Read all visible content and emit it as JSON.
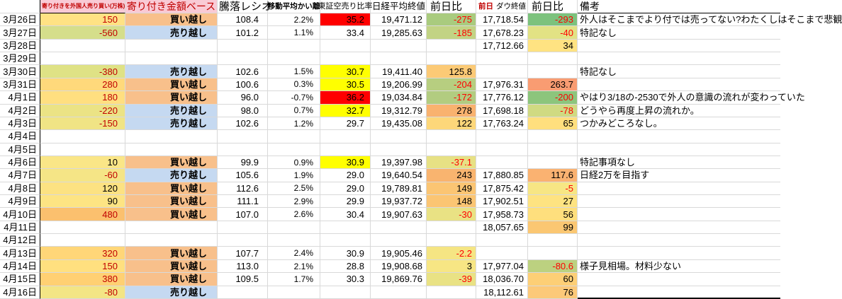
{
  "header": {
    "amount_label": "寄り付きを外国人売り買い(万株)",
    "basis_label": "寄り付き金額ベース",
    "ratio_label": "騰落レシオ",
    "ma_label": "移動平均かい離",
    "short_label": "東証空売り比率",
    "nikkei_label": "日経平均終値",
    "nikkei_chg_label": "前日比",
    "dow_prefix_label": "前日",
    "dow_label": "ダウ終値",
    "dow_chg_label": "前日比",
    "remark_label": "備考"
  },
  "colors": {
    "header_pink": "#F9CAD5",
    "header_red_text": "#C00000",
    "buy_bg": "#F8C08B",
    "sell_bg": "#C5D9F1",
    "amount_neg": "#C00000",
    "neg_text": "#FF0000",
    "short_red": "#FF0000",
    "short_yellow": "#FFFF00",
    "grid": "#D9D9D9"
  },
  "rows": [
    {
      "date": "3月26日",
      "amount": "150",
      "amount_bg": "#FFE284",
      "amount_red": true,
      "kind": "買い越し",
      "kind_bg": "#F8C08B",
      "ratio": "108.4",
      "ma": "2.2%",
      "short": "35.2",
      "short_bg": "#FF0000",
      "nikkei": "19,471.12",
      "nikkei_chg": "-275",
      "nikkei_chg_bg": "#A9CB7E",
      "nikkei_chg_red": true,
      "dow": "17,718.54",
      "dow_chg": "-293",
      "dow_chg_bg": "#7CC27D",
      "dow_chg_red": true,
      "remark": "外人はそこまでより付では売ってない?わたくしはそこまで悲観"
    },
    {
      "date": "3月27日",
      "amount": "-560",
      "amount_bg": "#D5DE8B",
      "amount_red": true,
      "kind": "売り越し",
      "kind_bg": "#C5D9F1",
      "ratio": "101.2",
      "ma": "1.1%",
      "short": "33.4",
      "short_bg": "",
      "nikkei": "19,285.63",
      "nikkei_chg": "-185",
      "nikkei_chg_bg": "#C2D384",
      "nikkei_chg_red": true,
      "dow": "17,678.23",
      "dow_chg": "-40",
      "dow_chg_bg": "#E2E284",
      "dow_chg_red": true,
      "remark": "特記なし"
    },
    {
      "date": "3月28日",
      "amount": "",
      "kind": "",
      "ratio": "",
      "ma": "",
      "short": "",
      "nikkei": "",
      "nikkei_chg": "",
      "dow": "17,712.66",
      "dow_chg": "34",
      "dow_chg_bg": "#FFE382",
      "remark": ""
    },
    {
      "date": "3月29日",
      "amount": "",
      "kind": "",
      "ratio": "",
      "ma": "",
      "short": "",
      "nikkei": "",
      "nikkei_chg": "",
      "dow": "",
      "dow_chg": "",
      "remark": ""
    },
    {
      "date": "3月30日",
      "amount": "-380",
      "amount_bg": "#DFE285",
      "amount_red": true,
      "kind": "売り越し",
      "kind_bg": "#C5D9F1",
      "ratio": "102.6",
      "ma": "1.5%",
      "short": "30.7",
      "short_bg": "#FFFF00",
      "nikkei": "19,411.40",
      "nikkei_chg": "125.8",
      "nikkei_chg_bg": "#FCCA76",
      "dow": "",
      "dow_chg": "",
      "remark": "特記なし"
    },
    {
      "date": "3月31日",
      "amount": "280",
      "amount_bg": "#FFD97B",
      "amount_red": true,
      "kind": "買い越し",
      "kind_bg": "#F8C08B",
      "ratio": "100.6",
      "ma": "0.3%",
      "short": "30.5",
      "short_bg": "#FFFF00",
      "nikkei": "19,206.99",
      "nikkei_chg": "-204",
      "nikkei_chg_bg": "#B7CE80",
      "nikkei_chg_red": true,
      "dow": "17,976.31",
      "dow_chg": "263.7",
      "dow_chg_bg": "#F99C72",
      "remark": ""
    },
    {
      "date": "4月1日",
      "amount": "180",
      "amount_bg": "#FFDF80",
      "amount_red": true,
      "kind": "買い越し",
      "kind_bg": "#F8C08B",
      "ratio": "96.0",
      "ma": "-0.7%",
      "short": "36.2",
      "short_bg": "#FF0000",
      "nikkei": "19,034.84",
      "nikkei_chg": "-172",
      "nikkei_chg_bg": "#B2CC80",
      "nikkei_chg_red": true,
      "dow": "17,776.12",
      "dow_chg": "-200",
      "dow_chg_bg": "#8CC57C",
      "dow_chg_red": true,
      "remark": "やはり3/18の-2530で外人の意識の流れが変わっていた"
    },
    {
      "date": "4月2日",
      "amount": "-220",
      "amount_bg": "#EBE385",
      "amount_red": true,
      "kind": "売り越し",
      "kind_bg": "#C5D9F1",
      "ratio": "98.0",
      "ma": "0.7%",
      "short": "32.7",
      "short_bg": "#FFFF00",
      "nikkei": "19,312.79",
      "nikkei_chg": "278",
      "nikkei_chg_bg": "#F9B26F",
      "dow": "17,698.18",
      "dow_chg": "-78",
      "dow_chg_bg": "#D0DA82",
      "dow_chg_red": true,
      "remark": "どうやら再度上昇の流れか。"
    },
    {
      "date": "4月3日",
      "amount": "-150",
      "amount_bg": "#F0E485",
      "amount_red": true,
      "kind": "売り越し",
      "kind_bg": "#C5D9F1",
      "ratio": "102.6",
      "ma": "1.2%",
      "short": "29.7",
      "short_bg": "",
      "nikkei": "19,435.08",
      "nikkei_chg": "122",
      "nikkei_chg_bg": "#FDD77A",
      "dow": "17,763.24",
      "dow_chg": "65",
      "dow_chg_bg": "#FFDF7E",
      "remark": "つかみどころなし。"
    },
    {
      "date": "4月4日",
      "amount": "",
      "kind": "",
      "ratio": "",
      "ma": "",
      "short": "",
      "nikkei": "",
      "nikkei_chg": "",
      "dow": "",
      "dow_chg": "",
      "remark": ""
    },
    {
      "date": "4月5日",
      "amount": "",
      "kind": "",
      "ratio": "",
      "ma": "",
      "short": "",
      "nikkei": "",
      "nikkei_chg": "",
      "dow": "",
      "dow_chg": "",
      "remark": ""
    },
    {
      "date": "4月6日",
      "amount": "10",
      "amount_bg": "#FAE687",
      "kind": "買い越し",
      "kind_bg": "#F8C08B",
      "ratio": "99.9",
      "ma": "0.9%",
      "short": "30.9",
      "short_bg": "#FFFF00",
      "nikkei": "19,397.98",
      "nikkei_chg": "-37.1",
      "nikkei_chg_bg": "#E7E184",
      "nikkei_chg_red": true,
      "dow": "",
      "dow_chg": "",
      "remark": "特記事項なし"
    },
    {
      "date": "4月7日",
      "amount": "-60",
      "amount_bg": "#F5E586",
      "amount_red": true,
      "kind": "売り越し",
      "kind_bg": "#C5D9F1",
      "ratio": "105.6",
      "ma": "1.9%",
      "short": "29.0",
      "short_bg": "",
      "nikkei": "19,640.54",
      "nikkei_chg": "243",
      "nikkei_chg_bg": "#F9B46F",
      "dow": "17,880.85",
      "dow_chg": "117.6",
      "dow_chg_bg": "#FAB271",
      "remark": "日経2万を目指す"
    },
    {
      "date": "4月8日",
      "amount": "120",
      "amount_bg": "#FCE282",
      "kind": "買い越し",
      "kind_bg": "#F8C08B",
      "ratio": "112.6",
      "ma": "2.5%",
      "short": "29.0",
      "short_bg": "",
      "nikkei": "19,789.81",
      "nikkei_chg": "149",
      "nikkei_chg_bg": "#FBC573",
      "dow": "17,875.42",
      "dow_chg": "-5",
      "dow_chg_bg": "#F7E684",
      "dow_chg_red": true,
      "remark": ""
    },
    {
      "date": "4月9日",
      "amount": "90",
      "amount_bg": "#FDE483",
      "kind": "買い越し",
      "kind_bg": "#F8C08B",
      "ratio": "111.1",
      "ma": "2.9%",
      "short": "29.9",
      "short_bg": "",
      "nikkei": "19,937.72",
      "nikkei_chg": "148",
      "nikkei_chg_bg": "#FBC573",
      "dow": "17,902.51",
      "dow_chg": "27",
      "dow_chg_bg": "#FEE381",
      "remark": ""
    },
    {
      "date": "4月10日",
      "amount": "480",
      "amount_bg": "#FBC06E",
      "amount_red": true,
      "kind": "買い越し",
      "kind_bg": "#F8C08B",
      "ratio": "107.0",
      "ma": "2.6%",
      "short": "30.4",
      "short_bg": "",
      "nikkei": "19,907.63",
      "nikkei_chg": "-30",
      "nikkei_chg_bg": "#E9E284",
      "nikkei_chg_red": true,
      "dow": "17,958.73",
      "dow_chg": "56",
      "dow_chg_bg": "#FEDF7D",
      "remark": ""
    },
    {
      "date": "4月11日",
      "amount": "",
      "kind": "",
      "ratio": "",
      "ma": "",
      "short": "",
      "nikkei": "",
      "nikkei_chg": "",
      "dow": "18,057.65",
      "dow_chg": "99",
      "dow_chg_bg": "#FBC772",
      "remark": ""
    },
    {
      "date": "4月12日",
      "amount": "",
      "kind": "",
      "ratio": "",
      "ma": "",
      "short": "",
      "nikkei": "",
      "nikkei_chg": "",
      "dow": "",
      "dow_chg": "",
      "remark": ""
    },
    {
      "date": "4月13日",
      "amount": "320",
      "amount_bg": "#FFD678",
      "amount_red": true,
      "kind": "買い越し",
      "kind_bg": "#F8C08B",
      "ratio": "107.7",
      "ma": "2.4%",
      "short": "30.9",
      "short_bg": "",
      "nikkei": "19,905.46",
      "nikkei_chg": "-2.2",
      "nikkei_chg_bg": "#F5E583",
      "nikkei_chg_red": true,
      "dow": "",
      "dow_chg": "",
      "remark": ""
    },
    {
      "date": "4月14日",
      "amount": "150",
      "amount_bg": "#FFE07F",
      "amount_red": true,
      "kind": "買い越し",
      "kind_bg": "#F8C08B",
      "ratio": "113.0",
      "ma": "2.1%",
      "short": "28.8",
      "short_bg": "",
      "nikkei": "19,908.68",
      "nikkei_chg": "3",
      "nikkei_chg_bg": "#F7E684",
      "dow": "17,977.04",
      "dow_chg": "-80.6",
      "dow_chg_bg": "#BCD180",
      "dow_chg_red": true,
      "remark": "様子見相場。材料少ない"
    },
    {
      "date": "4月15日",
      "amount": "380",
      "amount_bg": "#FFD073",
      "amount_red": true,
      "kind": "買い越し",
      "kind_bg": "#F8C08B",
      "ratio": "109.5",
      "ma": "1.7%",
      "short": "30.3",
      "short_bg": "",
      "nikkei": "19,869.76",
      "nikkei_chg": "-39",
      "nikkei_chg_bg": "#E9E284",
      "nikkei_chg_red": true,
      "dow": "18,036.70",
      "dow_chg": "60",
      "dow_chg_bg": "#FDCF76",
      "remark": ""
    },
    {
      "date": "4月16日",
      "amount": "-80",
      "amount_bg": "#F3E585",
      "amount_red": true,
      "kind": "売り越し",
      "kind_bg": "#C5D9F1",
      "ratio": "",
      "ma": "",
      "short": "",
      "nikkei": "",
      "nikkei_chg": "",
      "dow": "18,112.61",
      "dow_chg": "76",
      "dow_chg_bg": "#FCC979",
      "remark": "",
      "thick_bottom": true
    }
  ]
}
